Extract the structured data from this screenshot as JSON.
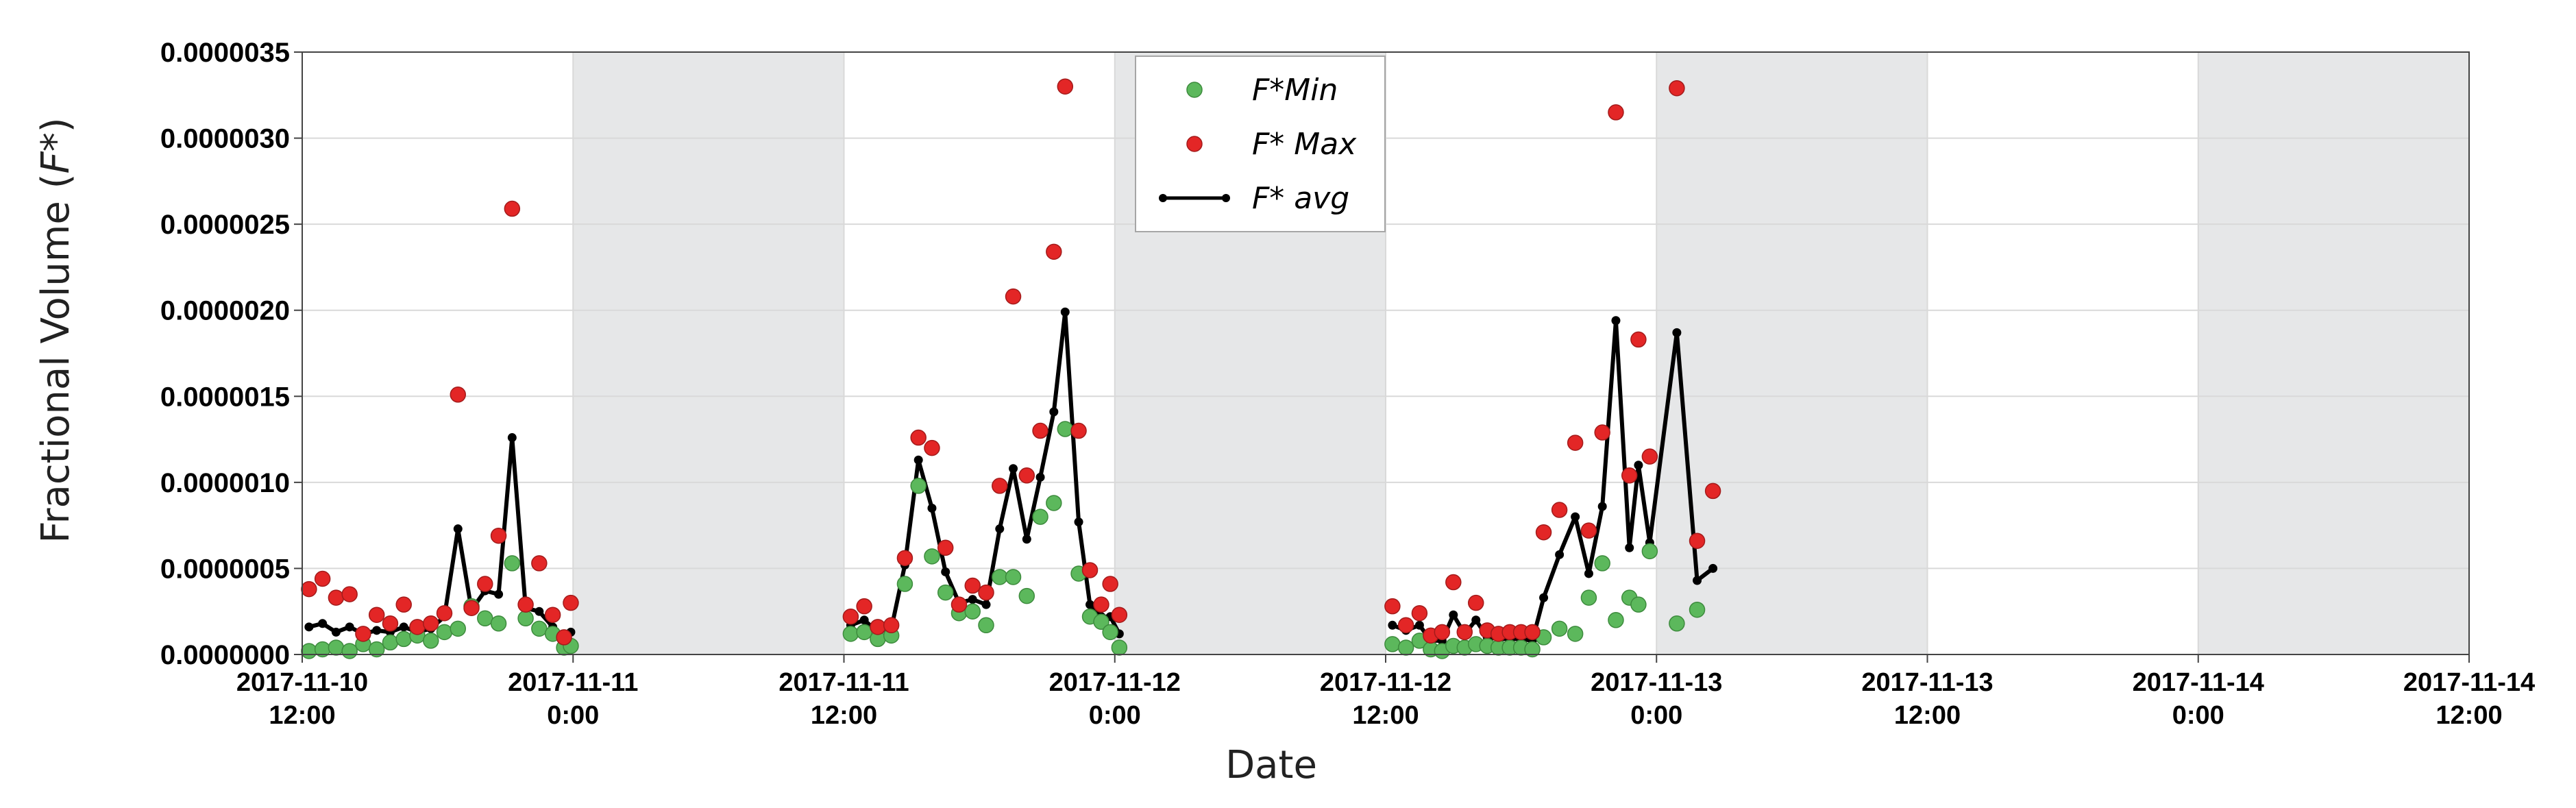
{
  "chart_data": {
    "type": "scatter",
    "title": "",
    "xlabel": "Date",
    "ylabel_main": "Fractional Volume (",
    "ylabel_var": "F*",
    "ylabel_close": ")",
    "x_unit": "hours since 2017-11-10 12:00",
    "xlim": [
      0,
      96
    ],
    "ylim": [
      0,
      3.5e-06
    ],
    "y_ticks": [
      0,
      5e-07,
      1e-06,
      1.5e-06,
      2e-06,
      2.5e-06,
      3e-06,
      3.5e-06
    ],
    "y_tick_labels": [
      "0.0000000",
      "0.0000005",
      "0.0000010",
      "0.0000015",
      "0.0000020",
      "0.0000025",
      "0.0000030",
      "0.0000035"
    ],
    "x_ticks": [
      {
        "x": 0,
        "line1": "2017-11-10",
        "line2": "12:00"
      },
      {
        "x": 12,
        "line1": "2017-11-11",
        "line2": "0:00"
      },
      {
        "x": 24,
        "line1": "2017-11-11",
        "line2": "12:00"
      },
      {
        "x": 36,
        "line1": "2017-11-12",
        "line2": "0:00"
      },
      {
        "x": 48,
        "line1": "2017-11-12",
        "line2": "12:00"
      },
      {
        "x": 60,
        "line1": "2017-11-13",
        "line2": "0:00"
      },
      {
        "x": 72,
        "line1": "2017-11-13",
        "line2": "12:00"
      },
      {
        "x": 84,
        "line1": "2017-11-14",
        "line2": "0:00"
      },
      {
        "x": 96,
        "line1": "2017-11-14",
        "line2": "12:00"
      }
    ],
    "night_bands": [
      [
        12,
        24
      ],
      [
        36,
        48
      ],
      [
        60,
        72
      ],
      [
        84,
        96
      ]
    ],
    "grid": true,
    "legend_position": "top-center",
    "colors": {
      "min": "#5cb85c",
      "max": "#e32626",
      "avg": "#000000",
      "night": "#e6e7e8",
      "grid": "#d9d9d9"
    },
    "series": [
      {
        "name": "F*Min",
        "style": "marker",
        "points": [
          [
            0.3,
            2e-08
          ],
          [
            0.9,
            3e-08
          ],
          [
            1.5,
            4e-08
          ],
          [
            2.1,
            2e-08
          ],
          [
            2.7,
            6e-08
          ],
          [
            3.3,
            3e-08
          ],
          [
            3.9,
            7e-08
          ],
          [
            4.5,
            9e-08
          ],
          [
            5.1,
            1.1e-07
          ],
          [
            5.7,
            8e-08
          ],
          [
            6.3,
            1.3e-07
          ],
          [
            6.9,
            1.5e-07
          ],
          [
            7.5,
            2.8e-07
          ],
          [
            8.1,
            2.1e-07
          ],
          [
            8.7,
            1.8e-07
          ],
          [
            9.3,
            5.3e-07
          ],
          [
            9.9,
            2.1e-07
          ],
          [
            10.5,
            1.5e-07
          ],
          [
            11.1,
            1.2e-07
          ],
          [
            11.6,
            4e-08
          ],
          [
            11.9,
            5e-08
          ],
          [
            24.3,
            1.2e-07
          ],
          [
            24.9,
            1.3e-07
          ],
          [
            25.5,
            9e-08
          ],
          [
            26.1,
            1.1e-07
          ],
          [
            26.7,
            4.1e-07
          ],
          [
            27.3,
            9.8e-07
          ],
          [
            27.9,
            5.7e-07
          ],
          [
            28.5,
            3.6e-07
          ],
          [
            29.1,
            2.4e-07
          ],
          [
            29.7,
            2.5e-07
          ],
          [
            30.3,
            1.7e-07
          ],
          [
            30.9,
            4.5e-07
          ],
          [
            31.5,
            4.5e-07
          ],
          [
            32.1,
            3.4e-07
          ],
          [
            32.7,
            8e-07
          ],
          [
            33.3,
            8.8e-07
          ],
          [
            33.8,
            1.31e-06
          ],
          [
            34.4,
            4.7e-07
          ],
          [
            34.9,
            2.2e-07
          ],
          [
            35.4,
            1.9e-07
          ],
          [
            35.8,
            1.3e-07
          ],
          [
            36.2,
            4e-08
          ],
          [
            48.3,
            6e-08
          ],
          [
            48.9,
            4e-08
          ],
          [
            49.5,
            8e-08
          ],
          [
            50.0,
            3e-08
          ],
          [
            50.5,
            2e-08
          ],
          [
            51.0,
            5e-08
          ],
          [
            51.5,
            4e-08
          ],
          [
            52.0,
            6e-08
          ],
          [
            52.5,
            5e-08
          ],
          [
            53.0,
            4e-08
          ],
          [
            53.5,
            4e-08
          ],
          [
            54.0,
            4e-08
          ],
          [
            54.5,
            3e-08
          ],
          [
            55.0,
            1e-07
          ],
          [
            55.7,
            1.5e-07
          ],
          [
            56.4,
            1.2e-07
          ],
          [
            57.0,
            3.3e-07
          ],
          [
            57.6,
            5.3e-07
          ],
          [
            58.2,
            2e-07
          ],
          [
            58.8,
            3.3e-07
          ],
          [
            59.2,
            2.9e-07
          ],
          [
            59.7,
            6e-07
          ],
          [
            60.9,
            1.8e-07
          ],
          [
            61.8,
            2.6e-07
          ]
        ]
      },
      {
        "name": "F* Max",
        "style": "marker",
        "points": [
          [
            0.3,
            3.8e-07
          ],
          [
            0.9,
            4.4e-07
          ],
          [
            1.5,
            3.3e-07
          ],
          [
            2.1,
            3.5e-07
          ],
          [
            2.7,
            1.2e-07
          ],
          [
            3.3,
            2.3e-07
          ],
          [
            3.9,
            1.8e-07
          ],
          [
            4.5,
            2.9e-07
          ],
          [
            5.1,
            1.6e-07
          ],
          [
            5.7,
            1.8e-07
          ],
          [
            6.3,
            2.4e-07
          ],
          [
            6.9,
            1.51e-06
          ],
          [
            7.5,
            2.7e-07
          ],
          [
            8.1,
            4.1e-07
          ],
          [
            8.7,
            6.9e-07
          ],
          [
            9.3,
            2.59e-06
          ],
          [
            9.9,
            2.9e-07
          ],
          [
            10.5,
            5.3e-07
          ],
          [
            11.1,
            2.3e-07
          ],
          [
            11.6,
            1e-07
          ],
          [
            11.9,
            3e-07
          ],
          [
            24.3,
            2.2e-07
          ],
          [
            24.9,
            2.8e-07
          ],
          [
            25.5,
            1.6e-07
          ],
          [
            26.1,
            1.7e-07
          ],
          [
            26.7,
            5.6e-07
          ],
          [
            27.3,
            1.26e-06
          ],
          [
            27.9,
            1.2e-06
          ],
          [
            28.5,
            6.2e-07
          ],
          [
            29.1,
            2.9e-07
          ],
          [
            29.7,
            4e-07
          ],
          [
            30.3,
            3.6e-07
          ],
          [
            30.9,
            9.8e-07
          ],
          [
            31.5,
            2.08e-06
          ],
          [
            32.1,
            1.04e-06
          ],
          [
            32.7,
            1.3e-06
          ],
          [
            33.3,
            2.34e-06
          ],
          [
            33.8,
            3.3e-06
          ],
          [
            34.4,
            1.3e-06
          ],
          [
            34.9,
            4.9e-07
          ],
          [
            35.4,
            2.9e-07
          ],
          [
            35.8,
            4.1e-07
          ],
          [
            36.2,
            2.3e-07
          ],
          [
            48.3,
            2.8e-07
          ],
          [
            48.9,
            1.7e-07
          ],
          [
            49.5,
            2.4e-07
          ],
          [
            50.0,
            1.1e-07
          ],
          [
            50.5,
            1.3e-07
          ],
          [
            51.0,
            4.2e-07
          ],
          [
            51.5,
            1.3e-07
          ],
          [
            52.0,
            3e-07
          ],
          [
            52.5,
            1.4e-07
          ],
          [
            53.0,
            1.2e-07
          ],
          [
            53.5,
            1.3e-07
          ],
          [
            54.0,
            1.3e-07
          ],
          [
            54.5,
            1.3e-07
          ],
          [
            55.0,
            7.1e-07
          ],
          [
            55.7,
            8.4e-07
          ],
          [
            56.4,
            1.23e-06
          ],
          [
            57.0,
            7.2e-07
          ],
          [
            57.6,
            1.29e-06
          ],
          [
            58.2,
            3.15e-06
          ],
          [
            58.8,
            1.04e-06
          ],
          [
            59.2,
            1.83e-06
          ],
          [
            59.7,
            1.15e-06
          ],
          [
            60.9,
            3.29e-06
          ],
          [
            61.8,
            6.6e-07
          ],
          [
            62.5,
            9.5e-07
          ]
        ]
      },
      {
        "name": "F* avg",
        "style": "line",
        "points": [
          [
            0.3,
            1.6e-07
          ],
          [
            0.9,
            1.8e-07
          ],
          [
            1.5,
            1.3e-07
          ],
          [
            2.1,
            1.6e-07
          ],
          [
            2.7,
            1.2e-07
          ],
          [
            3.3,
            1.4e-07
          ],
          [
            3.9,
            1.3e-07
          ],
          [
            4.5,
            1.6e-07
          ],
          [
            5.1,
            1.3e-07
          ],
          [
            5.7,
            1.5e-07
          ],
          [
            6.3,
            2.2e-07
          ],
          [
            6.9,
            7.3e-07
          ],
          [
            7.5,
            2.6e-07
          ],
          [
            8.1,
            3.7e-07
          ],
          [
            8.7,
            3.5e-07
          ],
          [
            9.3,
            1.26e-06
          ],
          [
            9.9,
            2.7e-07
          ],
          [
            10.5,
            2.5e-07
          ],
          [
            11.1,
            1.6e-07
          ],
          [
            11.6,
            8e-08
          ],
          [
            11.9,
            1.3e-07
          ],
          [
            24.3,
            1.7e-07
          ],
          [
            24.9,
            2e-07
          ],
          [
            25.5,
            1.3e-07
          ],
          [
            26.1,
            1.5e-07
          ],
          [
            26.7,
            5.2e-07
          ],
          [
            27.3,
            1.13e-06
          ],
          [
            27.9,
            8.5e-07
          ],
          [
            28.5,
            4.8e-07
          ],
          [
            29.1,
            3e-07
          ],
          [
            29.7,
            3.2e-07
          ],
          [
            30.3,
            2.9e-07
          ],
          [
            30.9,
            7.3e-07
          ],
          [
            31.5,
            1.08e-06
          ],
          [
            32.1,
            6.7e-07
          ],
          [
            32.7,
            1.03e-06
          ],
          [
            33.3,
            1.41e-06
          ],
          [
            33.8,
            1.99e-06
          ],
          [
            34.4,
            7.7e-07
          ],
          [
            34.9,
            2.9e-07
          ],
          [
            35.4,
            2.2e-07
          ],
          [
            35.8,
            2.2e-07
          ],
          [
            36.2,
            1.2e-07
          ],
          [
            48.3,
            1.7e-07
          ],
          [
            48.9,
            1.4e-07
          ],
          [
            49.5,
            1.7e-07
          ],
          [
            50.0,
            8e-08
          ],
          [
            50.5,
            8e-08
          ],
          [
            51.0,
            2.3e-07
          ],
          [
            51.5,
            1.2e-07
          ],
          [
            52.0,
            2e-07
          ],
          [
            52.5,
            1e-07
          ],
          [
            53.0,
            9e-08
          ],
          [
            53.5,
            9e-08
          ],
          [
            54.0,
            9e-08
          ],
          [
            54.5,
            8e-08
          ],
          [
            55.0,
            3.3e-07
          ],
          [
            55.7,
            5.8e-07
          ],
          [
            56.4,
            8e-07
          ],
          [
            57.0,
            4.7e-07
          ],
          [
            57.6,
            8.6e-07
          ],
          [
            58.2,
            1.94e-06
          ],
          [
            58.8,
            6.2e-07
          ],
          [
            59.2,
            1.1e-06
          ],
          [
            59.7,
            6.5e-07
          ],
          [
            60.9,
            1.87e-06
          ],
          [
            61.8,
            4.3e-07
          ],
          [
            62.5,
            5e-07
          ]
        ]
      }
    ]
  }
}
